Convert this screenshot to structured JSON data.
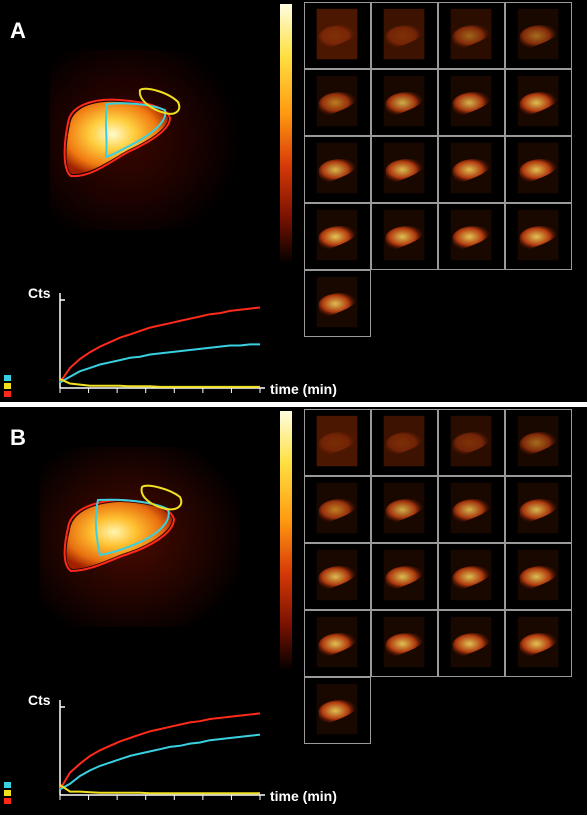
{
  "colors": {
    "roi_whole_liver": "#ff2a1a",
    "roi_right_lobe": "#39d0e0",
    "roi_heart": "#f0e020",
    "colormap": [
      "#000000",
      "#7a1200",
      "#d83a08",
      "#ff9a10",
      "#ffe040",
      "#fffde0"
    ]
  },
  "panels": [
    {
      "label": "A",
      "chart_data": {
        "type": "line",
        "ylabel": "Cts",
        "xlabel": "time (min)",
        "x": [
          0,
          1,
          2,
          3,
          4,
          5,
          6,
          7,
          8,
          9,
          10,
          11,
          12,
          13,
          14,
          15,
          16,
          17,
          18,
          19,
          20
        ],
        "series": [
          {
            "color": "#ff2a1a",
            "values": [
              5,
              18,
              26,
              32,
              37,
              41,
              45,
              48,
              51,
              54,
              56,
              58,
              60,
              62,
              64,
              66,
              67,
              69,
              70,
              71,
              72
            ]
          },
          {
            "color": "#39d0e0",
            "values": [
              5,
              10,
              15,
              18,
              21,
              23,
              25,
              27,
              28,
              30,
              31,
              32,
              33,
              34,
              35,
              36,
              37,
              38,
              38,
              39,
              39
            ]
          },
          {
            "color": "#f0e020",
            "values": [
              8,
              4,
              3,
              2,
              2,
              2,
              2,
              1.5,
              1.5,
              1.5,
              1,
              1,
              1,
              1,
              1,
              1,
              1,
              1,
              1,
              1,
              1
            ]
          }
        ],
        "ylim": [
          0,
          85
        ]
      },
      "frame_intensities": [
        0.35,
        0.4,
        0.55,
        0.6,
        0.7,
        0.78,
        0.8,
        0.85,
        0.82,
        0.84,
        0.85,
        0.86,
        0.88,
        0.86,
        0.87,
        0.87,
        0.85
      ]
    },
    {
      "label": "B",
      "chart_data": {
        "type": "line",
        "ylabel": "Cts",
        "xlabel": "time (min)",
        "x": [
          0,
          1,
          2,
          3,
          4,
          5,
          6,
          7,
          8,
          9,
          10,
          11,
          12,
          13,
          14,
          15,
          16,
          17,
          18,
          19,
          20
        ],
        "series": [
          {
            "color": "#ff2a1a",
            "values": [
              5,
              20,
              28,
              35,
              40,
              44,
              48,
              51,
              54,
              57,
              59,
              61,
              63,
              65,
              66,
              68,
              69,
              70,
              71,
              72,
              73
            ]
          },
          {
            "color": "#39d0e0",
            "values": [
              5,
              10,
              17,
              22,
              26,
              29,
              32,
              35,
              37,
              39,
              41,
              43,
              44,
              46,
              47,
              49,
              50,
              51,
              52,
              53,
              54
            ]
          },
          {
            "color": "#f0e020",
            "values": [
              9,
              3,
              3,
              2.5,
              2,
              2,
              2,
              2,
              2,
              1.5,
              1.5,
              1.5,
              1.5,
              1.5,
              1.5,
              1.5,
              1.5,
              1.5,
              1.5,
              1.5,
              1.5
            ]
          }
        ],
        "ylim": [
          0,
          85
        ]
      },
      "frame_intensities": [
        0.3,
        0.38,
        0.45,
        0.6,
        0.72,
        0.78,
        0.8,
        0.82,
        0.84,
        0.84,
        0.85,
        0.85,
        0.86,
        0.86,
        0.86,
        0.87,
        0.86
      ]
    }
  ]
}
